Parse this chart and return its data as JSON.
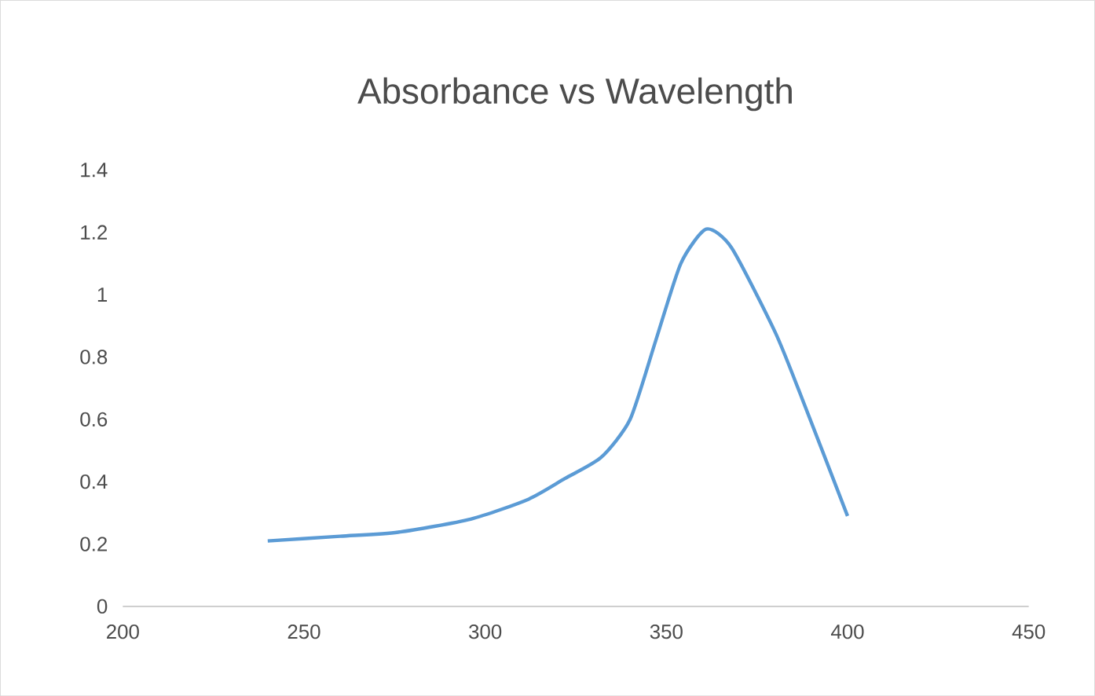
{
  "chart_data": {
    "type": "line",
    "title": "Absorbance vs Wavelength",
    "x": [
      240,
      260,
      276,
      296,
      312,
      322,
      332,
      340,
      347,
      354,
      361,
      368,
      380,
      387,
      400
    ],
    "series": [
      {
        "color": "#5b9bd5",
        "values": [
          0.21,
          0.225,
          0.238,
          0.28,
          0.344,
          0.41,
          0.478,
          0.6,
          0.85,
          1.1,
          1.21,
          1.15,
          0.88,
          0.68,
          0.29
        ]
      }
    ],
    "xlim": [
      200,
      450
    ],
    "xticks": [
      200,
      250,
      300,
      350,
      400,
      450
    ],
    "ylim": [
      0,
      1.4
    ],
    "yticks": [
      0,
      0.2,
      0.4,
      0.6,
      0.8,
      1,
      1.2,
      1.4
    ],
    "grid": false,
    "marker": "none",
    "line_style": "solid"
  }
}
